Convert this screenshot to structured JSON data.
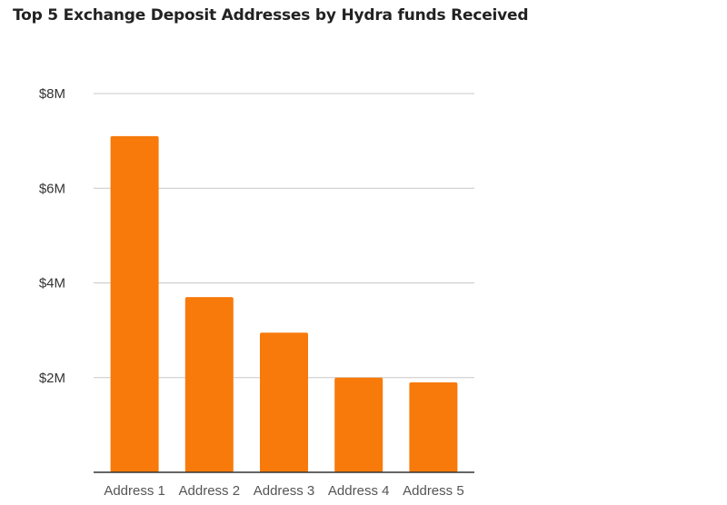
{
  "chart_data": {
    "type": "bar",
    "title": "Top 5 Exchange Deposit Addresses by Hydra funds Received",
    "xlabel": "",
    "ylabel": "",
    "categories": [
      "Address 1",
      "Address 2",
      "Address 3",
      "Address 4",
      "Address 5"
    ],
    "values": [
      7.1,
      3.7,
      2.95,
      2.0,
      1.9
    ],
    "unit": "$M",
    "yticks": [
      {
        "value": 2,
        "label": "$2M"
      },
      {
        "value": 4,
        "label": "$4M"
      },
      {
        "value": 6,
        "label": "$6M"
      },
      {
        "value": 8,
        "label": "$8M"
      }
    ],
    "ylim": [
      0,
      8
    ],
    "grid": true,
    "legend": "none",
    "bar_color": "#F77A0A",
    "grid_color": "#C8C8C8",
    "axis_color": "#333333"
  }
}
